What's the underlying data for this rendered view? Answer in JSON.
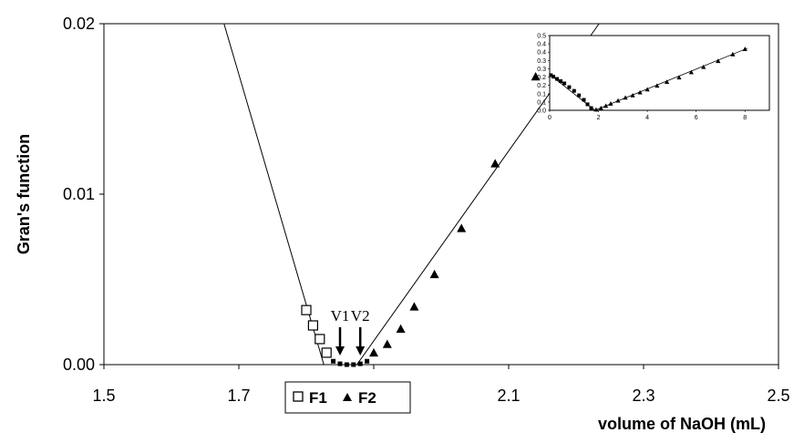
{
  "chart_data": [
    {
      "type": "scatter",
      "title": "",
      "xlabel": "volume of NaOH (mL)",
      "ylabel": "Gran's function",
      "xlim": [
        1.5,
        2.5
      ],
      "ylim": [
        0,
        0.02
      ],
      "x_ticks": [
        "1.5",
        "1.7",
        "1.9",
        "2.1",
        "2.3",
        "2.5"
      ],
      "y_ticks": [
        "0.00",
        "0.01",
        "0.02"
      ],
      "grid": false,
      "legend_position": "bottom-center",
      "series": [
        {
          "name": "F1",
          "marker": "open-square",
          "x": [
            1.8,
            1.81,
            1.82,
            1.83
          ],
          "y": [
            0.0032,
            0.0023,
            0.0015,
            0.0007
          ]
        },
        {
          "name": "F2",
          "marker": "filled-triangle",
          "x": [
            1.9,
            1.92,
            1.94,
            1.96,
            1.99,
            2.03,
            2.08,
            2.14
          ],
          "y": [
            0.0007,
            0.0012,
            0.0021,
            0.0034,
            0.0053,
            0.008,
            0.0118,
            0.0169
          ]
        },
        {
          "name": "",
          "marker": "filled-square-small",
          "x": [
            1.84,
            1.85,
            1.86,
            1.87,
            1.88,
            1.89
          ],
          "y": [
            0.0002,
            5e-05,
            0.0,
            0.0,
            5e-05,
            0.0002
          ]
        }
      ],
      "fit_lines": [
        {
          "x": [
            1.678,
            1.826
          ],
          "y": [
            0.02,
            0.0
          ]
        },
        {
          "x": [
            1.875,
            2.234
          ],
          "y": [
            0.0,
            0.02
          ]
        }
      ],
      "annotations": [
        {
          "text": "V1",
          "x": 1.85,
          "arrow_to_y": 0.0
        },
        {
          "text": "V2",
          "x": 1.88,
          "arrow_to_y": 0.0
        }
      ]
    },
    {
      "type": "scatter",
      "title": "",
      "xlim": [
        0,
        9
      ],
      "ylim": [
        0,
        0.5
      ],
      "x_ticks": [
        "0",
        "2",
        "4",
        "6",
        "8"
      ],
      "y_ticks": [
        "0.0",
        "0.1",
        "0.1",
        "0.2",
        "0.2",
        "0.3",
        "0.3",
        "0.4",
        "0.4",
        "0.5"
      ],
      "series": [
        {
          "name": "F1",
          "marker": "filled-square",
          "x": [
            0.05,
            0.15,
            0.3,
            0.45,
            0.6,
            0.8,
            1.0,
            1.2,
            1.4,
            1.55,
            1.7
          ],
          "y": [
            0.235,
            0.225,
            0.21,
            0.195,
            0.18,
            0.155,
            0.13,
            0.1,
            0.07,
            0.04,
            0.015
          ]
        },
        {
          "name": "F2",
          "marker": "filled-triangle",
          "x": [
            1.9,
            2.1,
            2.3,
            2.5,
            2.8,
            3.1,
            3.4,
            3.7,
            4.0,
            4.4,
            4.8,
            5.3,
            5.8,
            6.3,
            6.9,
            7.5,
            8.0
          ],
          "y": [
            0.005,
            0.015,
            0.03,
            0.045,
            0.065,
            0.085,
            0.1,
            0.12,
            0.14,
            0.165,
            0.19,
            0.22,
            0.255,
            0.29,
            0.33,
            0.375,
            0.41
          ]
        }
      ],
      "fit_lines": [
        {
          "x": [
            0.0,
            1.85
          ],
          "y": [
            0.24,
            0.0
          ]
        },
        {
          "x": [
            1.85,
            8.1
          ],
          "y": [
            0.0,
            0.415
          ]
        }
      ]
    }
  ]
}
